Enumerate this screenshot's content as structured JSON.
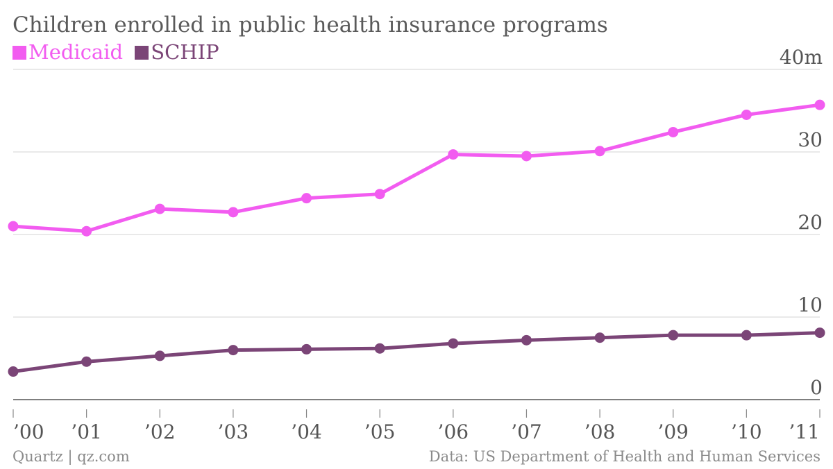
{
  "chart_data": {
    "type": "line",
    "title": "Children enrolled in public health insurance programs",
    "categories": [
      "’00",
      "’01",
      "’02",
      "’03",
      "’04",
      "’05",
      "’06",
      "’07",
      "’08",
      "’09",
      "’10",
      "’11"
    ],
    "series": [
      {
        "name": "Medicaid",
        "color": "#f25cf0",
        "values": [
          21.0,
          20.4,
          23.1,
          22.7,
          24.4,
          24.9,
          29.7,
          29.5,
          30.1,
          32.4,
          34.5,
          35.7
        ]
      },
      {
        "name": "SCHIP",
        "color": "#7b4577",
        "values": [
          3.4,
          4.6,
          5.3,
          6.0,
          6.1,
          6.2,
          6.8,
          7.2,
          7.5,
          7.8,
          7.8,
          8.1
        ]
      }
    ],
    "y_ticks": [
      "0",
      "10",
      "20",
      "30",
      "40m"
    ],
    "ylim": [
      0,
      40
    ],
    "grid": true,
    "legend_position": "top-left"
  },
  "footer": {
    "source_left": "Quartz | qz.com",
    "source_right": "Data: US Department of Health and Human Services"
  }
}
